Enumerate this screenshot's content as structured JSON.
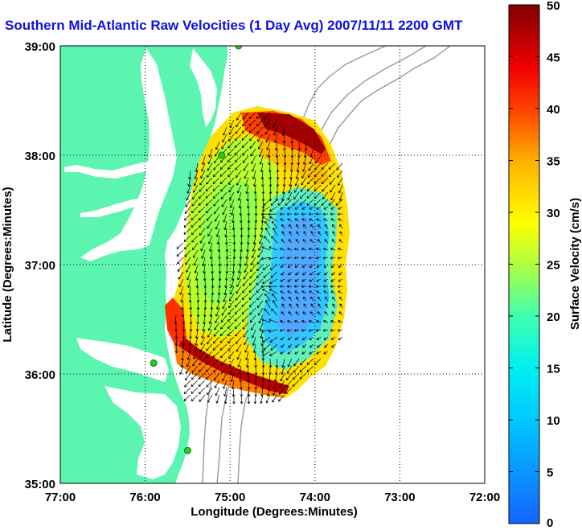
{
  "title": "Southern Mid-Atlantic Raw Velocities (1 Day Avg) 2007/11/11 2200 GMT",
  "x_axis": {
    "label": "Longitude (Degrees:Minutes)",
    "ticks": [
      "77:00",
      "76:00",
      "75:00",
      "74:00",
      "73:00",
      "72:00"
    ]
  },
  "y_axis": {
    "label": "Latitude (Degrees:Minutes)",
    "ticks": [
      "39:00",
      "38:00",
      "37:00",
      "36:00",
      "35:00"
    ]
  },
  "colorbar": {
    "label": "Surface Velocity (cm/s)",
    "ticks": [
      "50",
      "45",
      "40",
      "35",
      "30",
      "25",
      "20",
      "15",
      "10",
      "5",
      "0"
    ],
    "min": 0,
    "max": 50
  },
  "colors": {
    "land": "#5cf5b0",
    "title": "#1010e0",
    "station": "#22cc22"
  },
  "map": {
    "lon_range": [
      -77,
      -72
    ],
    "lat_range": [
      35,
      39
    ],
    "grid": "dotted",
    "stations": [
      {
        "lon": -75.9,
        "lat": 36.1
      },
      {
        "lon": -75.5,
        "lat": 35.3
      },
      {
        "lon": -75.1,
        "lat": 38.0
      },
      {
        "lon": -74.9,
        "lat": 39.0
      }
    ]
  }
}
